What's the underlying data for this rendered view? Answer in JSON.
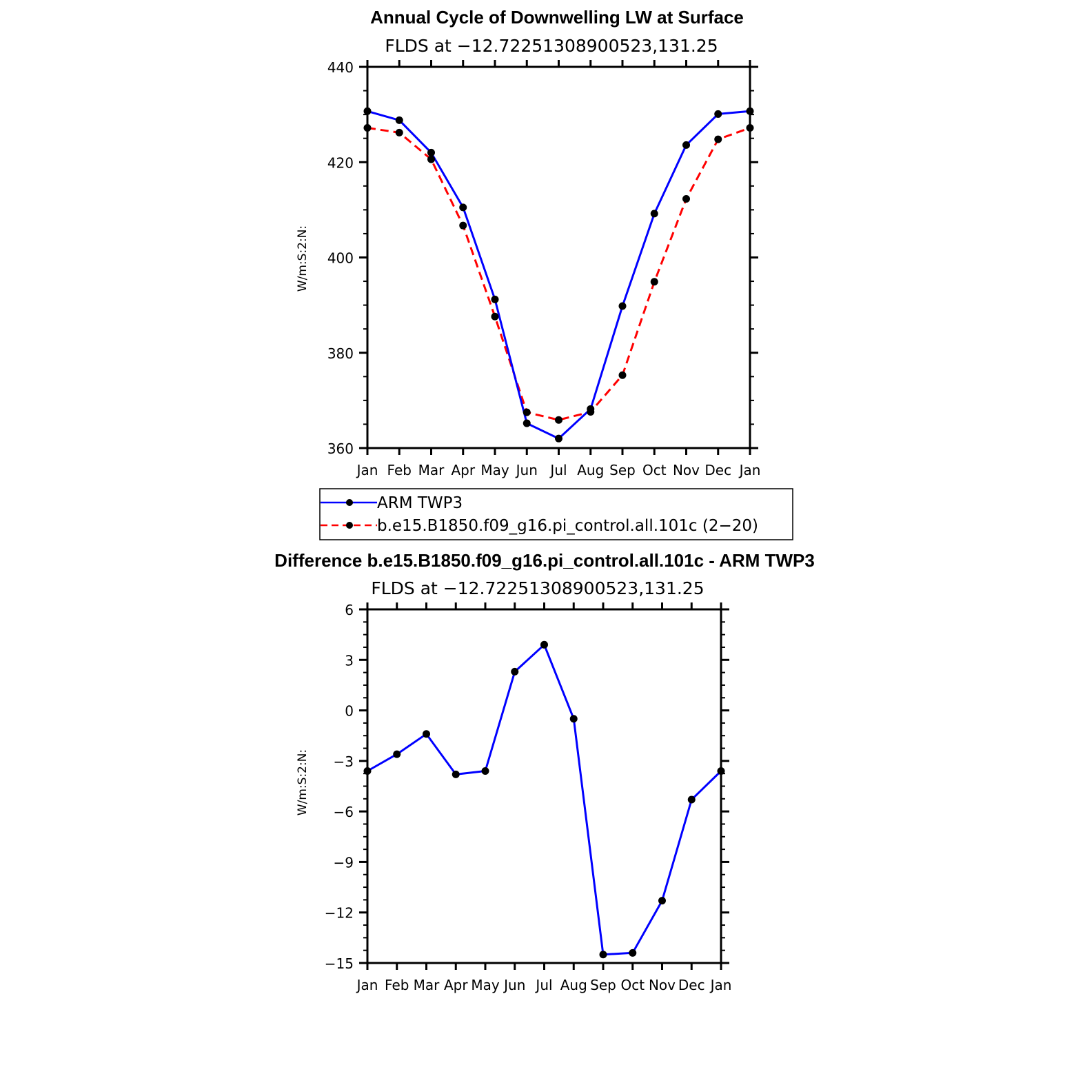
{
  "chart_data": [
    {
      "type": "line",
      "title": "Annual Cycle of Downwelling LW at Surface",
      "subtitle": "FLDS at −12.72251308900523,131.25",
      "ylabel": "W/m:S:2:N:",
      "categories": [
        "Jan",
        "Feb",
        "Mar",
        "Apr",
        "May",
        "Jun",
        "Jul",
        "Aug",
        "Sep",
        "Oct",
        "Nov",
        "Dec",
        "Jan"
      ],
      "ylim": [
        360,
        440
      ],
      "yticks": [
        360,
        380,
        400,
        420,
        440
      ],
      "ytick_labels": [
        "360",
        "380",
        "400",
        "420",
        "440"
      ],
      "grid": false,
      "series": [
        {
          "name": "ARM TWP3",
          "color": "#0000ff",
          "dash": "solid",
          "values": [
            430.7,
            428.8,
            422.0,
            410.5,
            391.2,
            365.2,
            362.0,
            368.2,
            389.8,
            409.2,
            423.6,
            430.1,
            430.7
          ]
        },
        {
          "name": "b.e15.B1850.f09_g16.pi_control.all.101c (2−20)",
          "color": "#ff0000",
          "dash": "dashed",
          "values": [
            427.2,
            426.2,
            420.6,
            406.7,
            387.6,
            367.5,
            365.9,
            367.6,
            375.3,
            394.9,
            412.3,
            424.8,
            427.2
          ]
        }
      ],
      "marker_color": "#000000"
    },
    {
      "type": "line",
      "title": "Difference b.e15.B1850.f09_g16.pi_control.all.101c - ARM TWP3",
      "subtitle": "FLDS at −12.72251308900523,131.25",
      "ylabel": "W/m:S:2:N:",
      "categories": [
        "Jan",
        "Feb",
        "Mar",
        "Apr",
        "May",
        "Jun",
        "Jul",
        "Aug",
        "Sep",
        "Oct",
        "Nov",
        "Dec",
        "Jan"
      ],
      "ylim": [
        -15,
        6
      ],
      "yticks": [
        -15,
        -12,
        -9,
        -6,
        -3,
        0,
        3,
        6
      ],
      "ytick_labels": [
        "−15",
        "−12",
        "−9",
        "−6",
        "−3",
        "0",
        "3",
        "6"
      ],
      "grid": false,
      "series": [
        {
          "color": "#0000ff",
          "dash": "solid",
          "values": [
            -3.6,
            -2.6,
            -1.4,
            -3.8,
            -3.6,
            2.3,
            3.9,
            -0.5,
            -14.5,
            -14.4,
            -11.3,
            -5.3,
            -3.6
          ]
        }
      ],
      "marker_color": "#000000"
    }
  ]
}
